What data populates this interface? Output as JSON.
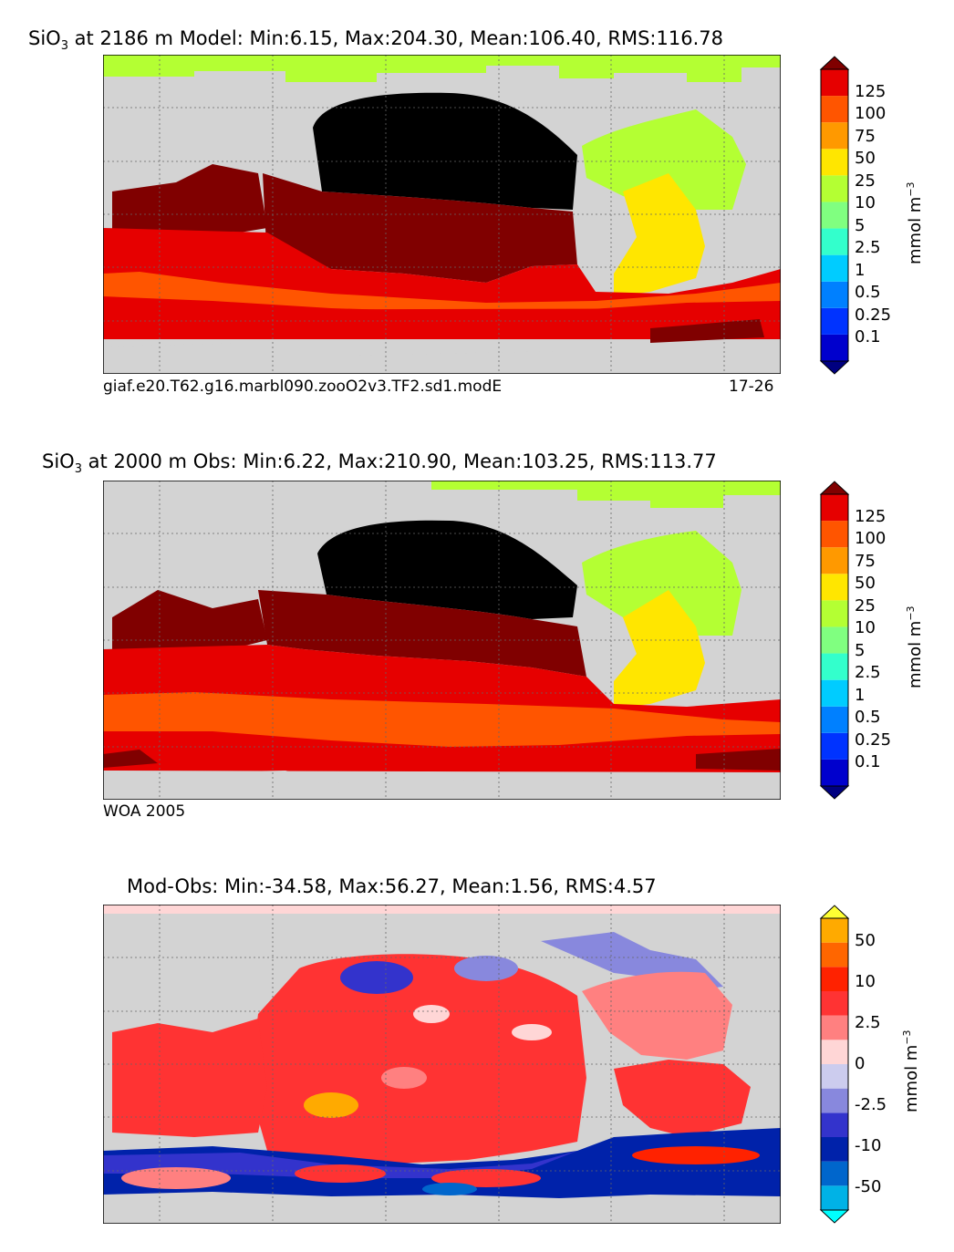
{
  "panels": [
    {
      "title_pre": "SiO",
      "title_sub": "3",
      "title_post": " at 2186 m Model: Min:6.15, Max:204.30, Mean:106.40, RMS:116.78",
      "caption_left": "giaf.e20.T62.g16.marbl090.zooO2v3.TF2.sd1.modE",
      "caption_right": "17-26",
      "colorbar_ticks": [
        "125",
        "100",
        "75",
        "50",
        "25",
        "10",
        "5",
        "2.5",
        "1",
        "0.5",
        "0.25",
        "0.1"
      ],
      "unit": "mmol m",
      "unit_exp": "−3"
    },
    {
      "title_pre": "SiO",
      "title_sub": "3",
      "title_post": " at 2000 m Obs: Min:6.22, Max:210.90, Mean:103.25, RMS:113.77",
      "caption_left": "WOA 2005",
      "caption_right": "",
      "colorbar_ticks": [
        "125",
        "100",
        "75",
        "50",
        "25",
        "10",
        "5",
        "2.5",
        "1",
        "0.5",
        "0.25",
        "0.1"
      ],
      "unit": "mmol m",
      "unit_exp": "−3"
    },
    {
      "title_pre": "",
      "title_sub": "",
      "title_post": "Mod-Obs: Min:-34.58, Max:56.27, Mean:1.56, RMS:4.57",
      "caption_left": "",
      "caption_right": "",
      "colorbar_ticks": [
        "50",
        "10",
        "2.5",
        "0",
        "-2.5",
        "-10",
        "-50"
      ],
      "unit": "mmol m",
      "unit_exp": "−3"
    }
  ],
  "colors": {
    "land": "#d3d3d3",
    "abs_scale": [
      "#000080",
      "#0000cd",
      "#0033ff",
      "#0080ff",
      "#00ccff",
      "#33ffcc",
      "#80ff80",
      "#b4ff33",
      "#ffe600",
      "#ff9900",
      "#ff5500",
      "#e60000",
      "#800000"
    ],
    "diff_scale": [
      "#00ffff",
      "#00b2e6",
      "#0066cc",
      "#0022aa",
      "#3333cc",
      "#8888dd",
      "#ccccee",
      "#ffd6d6",
      "#ff8080",
      "#ff3333",
      "#ff2200",
      "#ff6600",
      "#ffaa00",
      "#ffff33"
    ]
  }
}
